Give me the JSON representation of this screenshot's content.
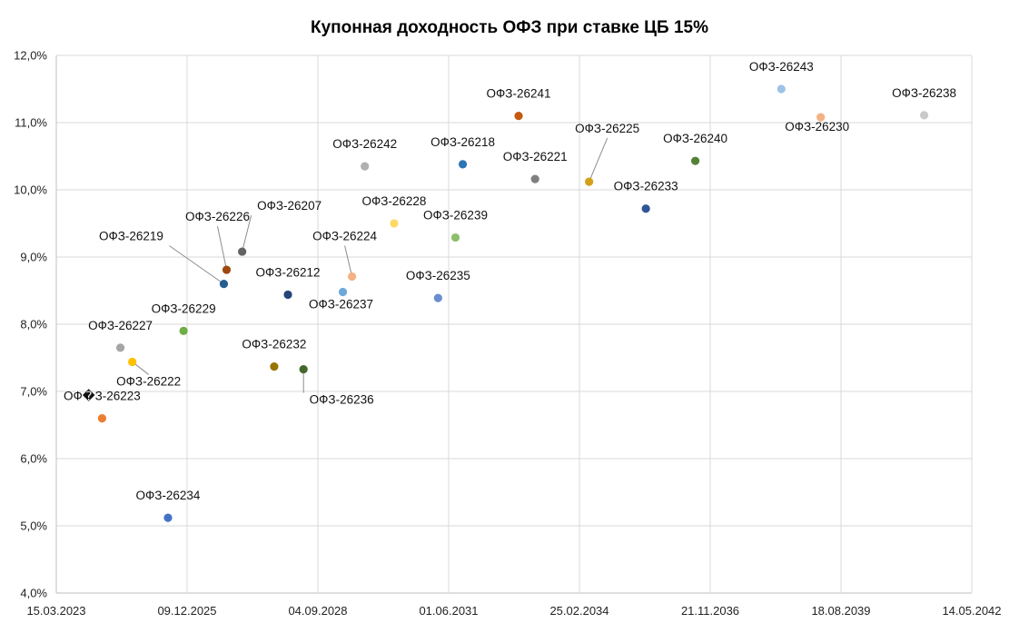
{
  "chart_data": {
    "type": "scatter",
    "title": "Купонная доходность ОФЗ при ставке ЦБ 15%",
    "xlabel": "",
    "ylabel": "",
    "x_ticks": [
      "15.03.2023",
      "09.12.2025",
      "04.09.2028",
      "01.06.2031",
      "25.02.2034",
      "21.11.2036",
      "18.08.2039",
      "14.05.2042"
    ],
    "xlim": [
      "15.03.2023",
      "14.05.2042"
    ],
    "y_ticks": [
      "4,0%",
      "5,0%",
      "6,0%",
      "7,0%",
      "8,0%",
      "9,0%",
      "10,0%",
      "11,0%",
      "12,0%"
    ],
    "ylim": [
      4.0,
      12.0
    ],
    "grid": true,
    "points": [
      {
        "label": "ОФ�З-26223",
        "x": "28.02.2024",
        "y": 6.6,
        "color": "#ed7d31"
      },
      {
        "label": "ОФЗ-26227",
        "x": "17.07.2024",
        "y": 7.65,
        "color": "#a5a5a5"
      },
      {
        "label": "ОФЗ-26222",
        "x": "16.10.2024",
        "y": 7.44,
        "color": "#ffc000"
      },
      {
        "label": "ОФЗ-26234",
        "x": "16.07.2025",
        "y": 5.12,
        "color": "#4472c4"
      },
      {
        "label": "ОФЗ-26229",
        "x": "12.11.2025",
        "y": 7.9,
        "color": "#70ad47"
      },
      {
        "label": "ОФЗ-26219",
        "x": "16.09.2026",
        "y": 8.6,
        "color": "#255e91"
      },
      {
        "label": "ОФЗ-26226",
        "x": "07.10.2026",
        "y": 8.81,
        "color": "#9e480e"
      },
      {
        "label": "ОФЗ-26207",
        "x": "03.02.2027",
        "y": 9.08,
        "color": "#636363"
      },
      {
        "label": "ОФЗ-26232",
        "x": "06.10.2027",
        "y": 7.37,
        "color": "#997300"
      },
      {
        "label": "ОФЗ-26212",
        "x": "19.01.2028",
        "y": 8.44,
        "color": "#264478"
      },
      {
        "label": "ОФЗ-26236",
        "x": "17.05.2028",
        "y": 7.33,
        "color": "#43682b"
      },
      {
        "label": "ОФЗ-26237",
        "x": "14.03.2029",
        "y": 8.48,
        "color": "#6fa8dc"
      },
      {
        "label": "ОФЗ-26224",
        "x": "23.05.2029",
        "y": 8.71,
        "color": "#f4b183"
      },
      {
        "label": "ОФЗ-26242",
        "x": "29.08.2029",
        "y": 10.35,
        "color": "#b0b0b0"
      },
      {
        "label": "ОФЗ-26228",
        "x": "10.04.2030",
        "y": 9.5,
        "color": "#ffd966"
      },
      {
        "label": "ОФЗ-26235",
        "x": "12.03.2031",
        "y": 8.39,
        "color": "#698ed0"
      },
      {
        "label": "ОФЗ-26239",
        "x": "23.07.2031",
        "y": 9.29,
        "color": "#8dbf6a"
      },
      {
        "label": "ОФЗ-26218",
        "x": "17.09.2031",
        "y": 10.38,
        "color": "#2e75b6"
      },
      {
        "label": "ОФЗ-26241",
        "x": "17.11.2032",
        "y": 11.1,
        "color": "#c55a11"
      },
      {
        "label": "ОФЗ-26221",
        "x": "23.03.2033",
        "y": 10.16,
        "color": "#7f7f7f"
      },
      {
        "label": "ОФЗ-26225",
        "x": "10.05.2034",
        "y": 10.12,
        "color": "#d4a017"
      },
      {
        "label": "ОФЗ-26233",
        "x": "18.07.2035",
        "y": 9.72,
        "color": "#2f5597"
      },
      {
        "label": "ОФЗ-26240",
        "x": "30.07.2036",
        "y": 10.43,
        "color": "#548235"
      },
      {
        "label": "ОФЗ-26243",
        "x": "19.05.2038",
        "y": 11.5,
        "color": "#9dc3e6"
      },
      {
        "label": "ОФЗ-26230",
        "x": "16.03.2039",
        "y": 11.08,
        "color": "#f4b183"
      },
      {
        "label": "ОФЗ-26238",
        "x": "15.05.2041",
        "y": 11.11,
        "color": "#c9c9c9"
      }
    ]
  }
}
